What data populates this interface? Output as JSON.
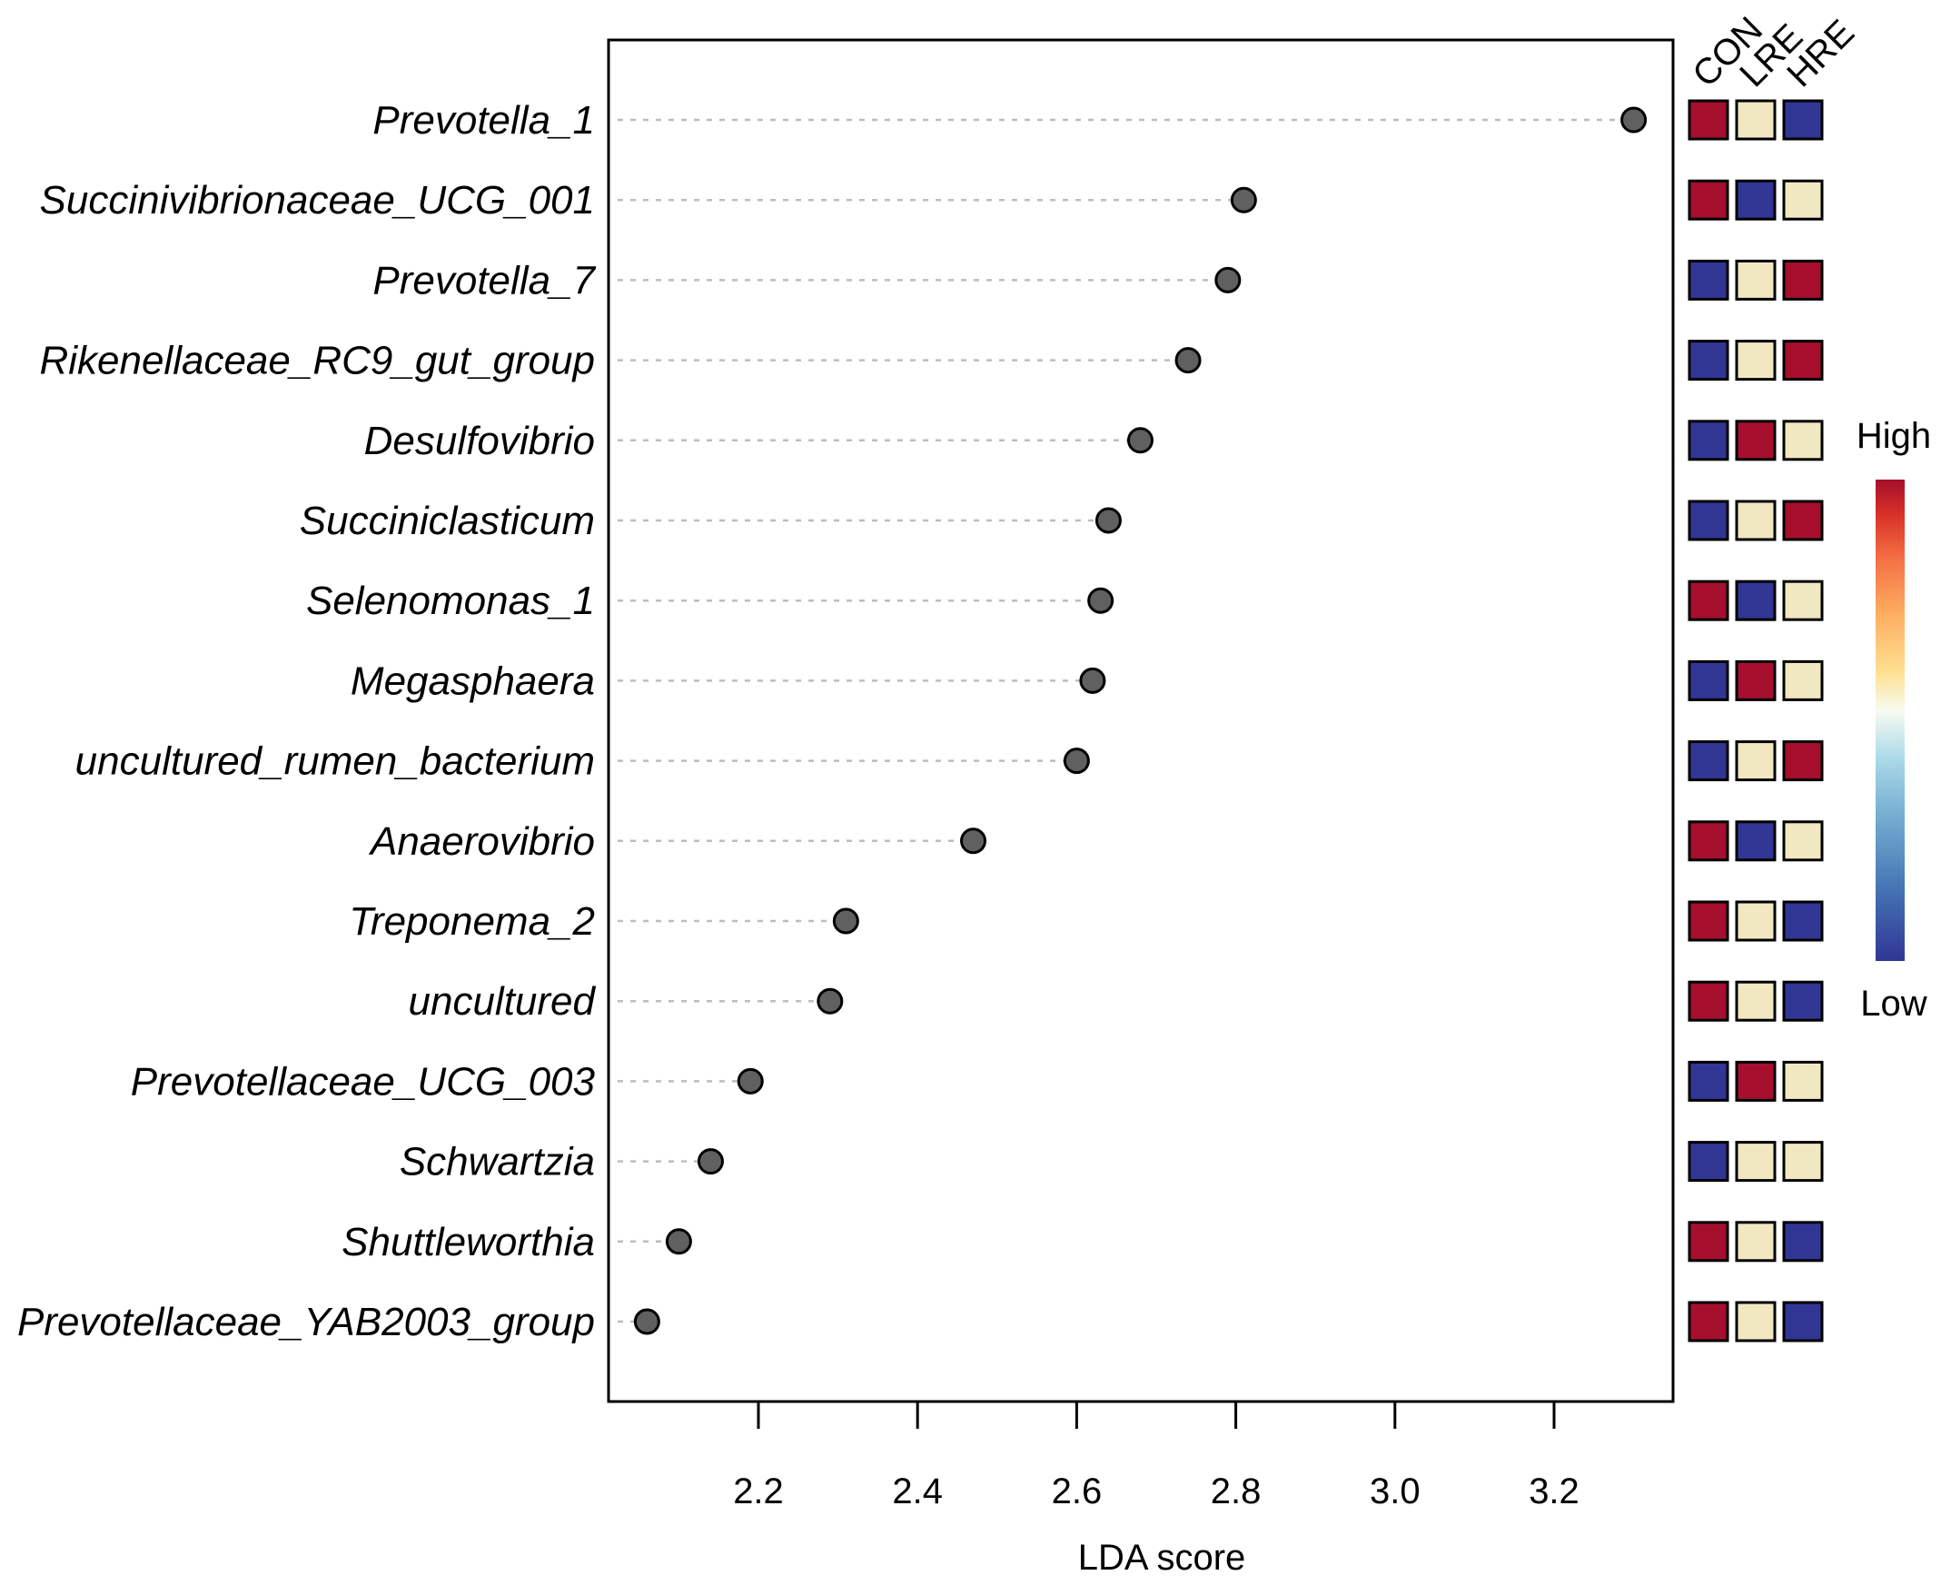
{
  "chart_data": {
    "type": "scatter",
    "subtype": "dot-plot with group heatmap",
    "xlabel": "LDA score",
    "xlim": [
      2.0,
      3.35
    ],
    "xticks": [
      2.2,
      2.4,
      2.6,
      2.8,
      3.0,
      3.2
    ],
    "xtick_labels": [
      "2.2",
      "2.4",
      "2.6",
      "2.8",
      "3.0",
      "3.2"
    ],
    "categories": [
      "Prevotella_1",
      "Succinivibrionaceae_UCG_001",
      "Prevotella_7",
      "Rikenellaceae_RC9_gut_group",
      "Desulfovibrio",
      "Succiniclasticum",
      "Selenomonas_1",
      "Megasphaera",
      "uncultured_rumen_bacterium",
      "Anaerovibrio",
      "Treponema_2",
      "uncultured",
      "Prevotellaceae_UCG_003",
      "Schwartzia",
      "Shuttleworthia",
      "Prevotellaceae_YAB2003_group"
    ],
    "values": [
      3.3,
      2.81,
      2.79,
      2.74,
      2.68,
      2.64,
      2.63,
      2.62,
      2.6,
      2.47,
      2.31,
      2.29,
      2.19,
      2.14,
      2.1,
      2.06
    ],
    "heatmap": {
      "groups": [
        "CON",
        "LRE",
        "HRE"
      ],
      "levels": [
        [
          "high",
          "mid",
          "low"
        ],
        [
          "high",
          "low",
          "mid"
        ],
        [
          "low",
          "mid",
          "high"
        ],
        [
          "low",
          "mid",
          "high"
        ],
        [
          "low",
          "high",
          "mid"
        ],
        [
          "low",
          "mid",
          "high"
        ],
        [
          "high",
          "low",
          "mid"
        ],
        [
          "low",
          "high",
          "mid"
        ],
        [
          "low",
          "mid",
          "high"
        ],
        [
          "high",
          "low",
          "mid"
        ],
        [
          "high",
          "mid",
          "low"
        ],
        [
          "high",
          "mid",
          "low"
        ],
        [
          "low",
          "high",
          "mid"
        ],
        [
          "low",
          "mid",
          "mid"
        ],
        [
          "high",
          "mid",
          "low"
        ],
        [
          "high",
          "mid",
          "low"
        ]
      ]
    },
    "legend": {
      "high_label": "High",
      "low_label": "Low",
      "placement": "right"
    },
    "colors": {
      "high": "#a50f2d",
      "mid": "#f1e8c2",
      "low": "#313695",
      "dot": "#606060",
      "grid": "#bdbdbd"
    }
  }
}
